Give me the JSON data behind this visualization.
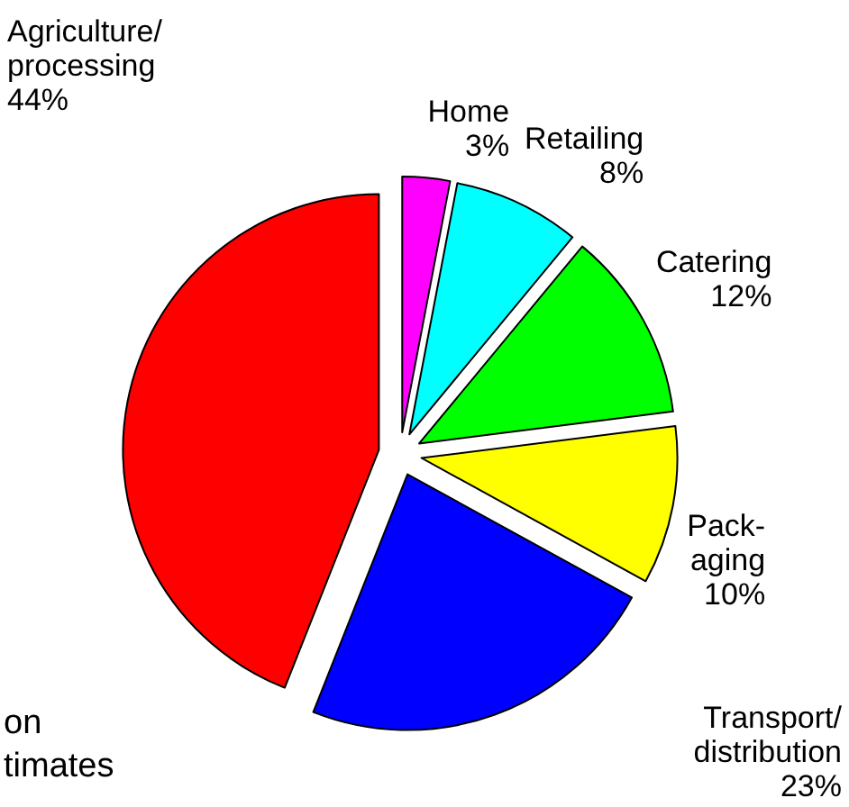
{
  "chart_data": {
    "type": "pie",
    "categories": [
      "Home",
      "Retailing",
      "Catering",
      "Pack-\naging",
      "Transport/\ndistribution",
      "Agriculture/\nprocessing"
    ],
    "values": [
      3,
      8,
      12,
      10,
      23,
      44
    ],
    "colors": [
      "#ff00ff",
      "#00ffff",
      "#00ff00",
      "#ffff00",
      "#0000ff",
      "#ff0000"
    ],
    "value_labels": [
      "3%",
      "8%",
      "12%",
      "10%",
      "23%",
      "44%"
    ],
    "annotations": [
      "on",
      "timates"
    ],
    "legend": false
  }
}
